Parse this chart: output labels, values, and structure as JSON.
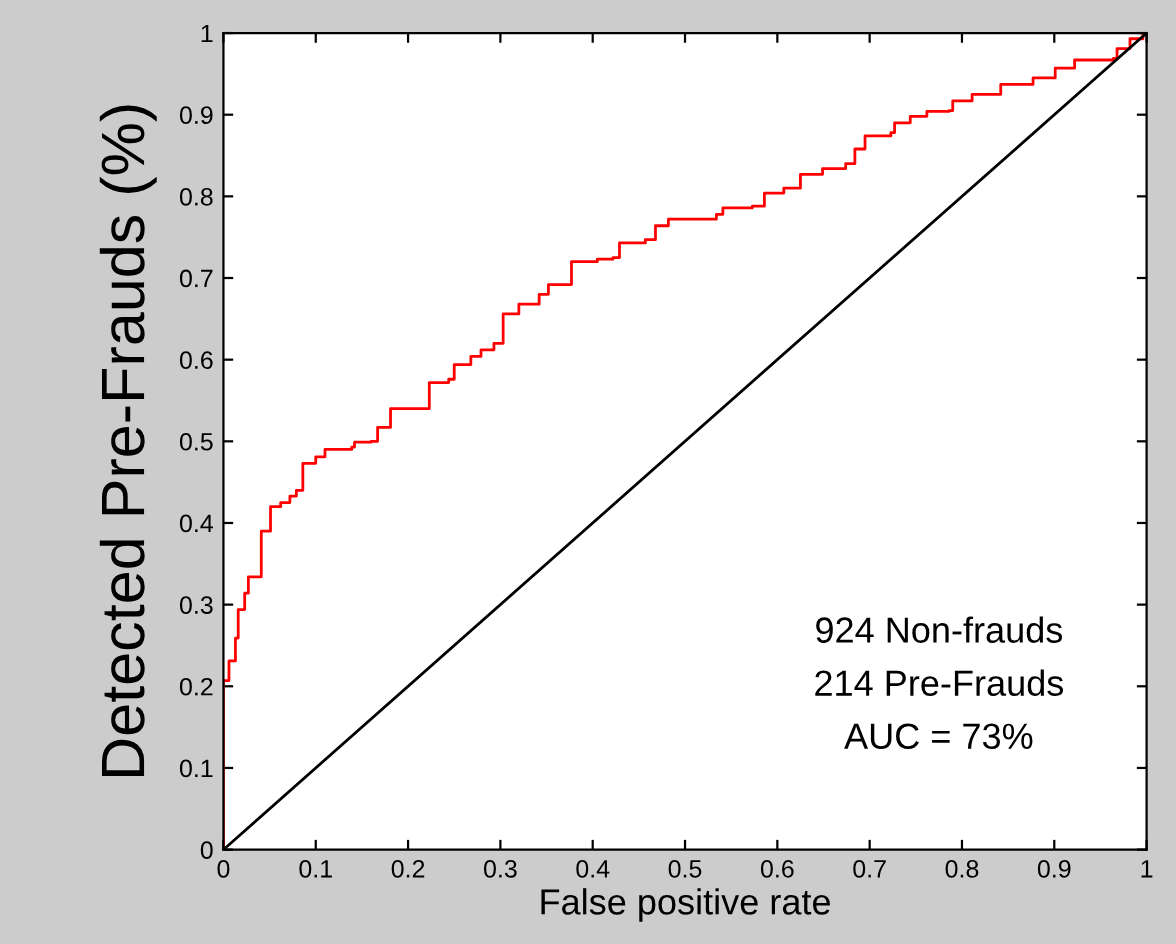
{
  "chart_data": {
    "type": "line",
    "xlabel": "False positive rate",
    "ylabel": "Detected Pre-Frauds (%)",
    "xlim": [
      0,
      1
    ],
    "ylim": [
      0,
      1
    ],
    "xticks": [
      0,
      0.1,
      0.2,
      0.3,
      0.4,
      0.5,
      0.6,
      0.7,
      0.8,
      0.9,
      1
    ],
    "yticks": [
      0,
      0.1,
      0.2,
      0.3,
      0.4,
      0.5,
      0.6,
      0.7,
      0.8,
      0.9,
      1
    ],
    "grid": false,
    "marker": "none",
    "line_style": "solid",
    "annotations": [
      "924 Non-frauds",
      "214 Pre-Frauds",
      "AUC = 73%"
    ],
    "series": [
      {
        "type": "step",
        "color": "#ff0000",
        "x": [
          0,
          0,
          0.006,
          0.013,
          0.016,
          0.023,
          0.027,
          0.034,
          0.041,
          0.051,
          0.062,
          0.072,
          0.079,
          0.086,
          0.1,
          0.11,
          0.139,
          0.142,
          0.16,
          0.167,
          0.181,
          0.209,
          0.223,
          0.244,
          0.25,
          0.268,
          0.279,
          0.293,
          0.303,
          0.32,
          0.342,
          0.352,
          0.366,
          0.377,
          0.405,
          0.422,
          0.429,
          0.457,
          0.468,
          0.482,
          0.534,
          0.541,
          0.573,
          0.586,
          0.607,
          0.625,
          0.649,
          0.674,
          0.684,
          0.695,
          0.723,
          0.727,
          0.744,
          0.762,
          0.786,
          0.79,
          0.811,
          0.842,
          0.877,
          0.901,
          0.922,
          0.964,
          0.968,
          0.982,
          0.996,
          1
        ],
        "values": [
          0,
          0.207,
          0.231,
          0.259,
          0.294,
          0.314,
          0.334,
          0.334,
          0.39,
          0.42,
          0.425,
          0.433,
          0.44,
          0.473,
          0.481,
          0.49,
          0.493,
          0.499,
          0.5,
          0.517,
          0.54,
          0.54,
          0.572,
          0.576,
          0.594,
          0.604,
          0.612,
          0.62,
          0.656,
          0.668,
          0.68,
          0.692,
          0.692,
          0.72,
          0.723,
          0.725,
          0.743,
          0.747,
          0.764,
          0.772,
          0.778,
          0.786,
          0.788,
          0.804,
          0.81,
          0.827,
          0.834,
          0.84,
          0.858,
          0.874,
          0.878,
          0.89,
          0.898,
          0.904,
          0.905,
          0.917,
          0.925,
          0.937,
          0.945,
          0.957,
          0.967,
          0.969,
          0.981,
          0.993,
          1,
          1
        ]
      },
      {
        "color": "#000000",
        "x": [
          0,
          1
        ],
        "values": [
          0,
          1
        ]
      }
    ]
  }
}
